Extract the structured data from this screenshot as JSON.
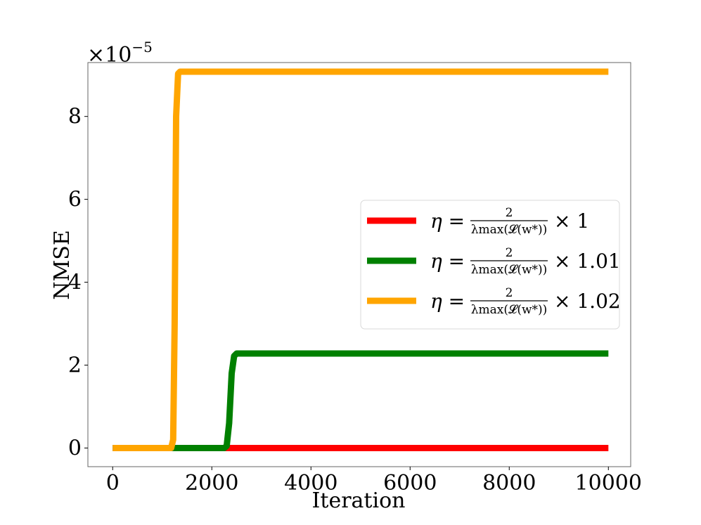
{
  "chart_data": {
    "type": "line",
    "xlabel": "Iteration",
    "ylabel": "NMSE",
    "y_scale_label": "×10",
    "y_scale_exponent": "−5",
    "xlim": [
      -500,
      10450
    ],
    "ylim": [
      -0.45,
      9.3
    ],
    "x_ticks": [
      0,
      2000,
      4000,
      6000,
      8000,
      10000
    ],
    "x_tick_labels": [
      "0",
      "2000",
      "4000",
      "6000",
      "8000",
      "10000"
    ],
    "y_ticks": [
      0,
      2,
      4,
      6,
      8
    ],
    "y_tick_labels": [
      "0",
      "2",
      "4",
      "6",
      "8"
    ],
    "grid": false,
    "legend_position": "center-right",
    "series": [
      {
        "name": "η = 2/λmax(L(w*)) × 1",
        "legend": {
          "eta": "η =",
          "num": "2",
          "den": "λmax(𝓛(w*))",
          "factor": "× 1"
        },
        "color": "#ff0000",
        "x": [
          0,
          10000
        ],
        "y": [
          0,
          0
        ]
      },
      {
        "name": "η = 2/λmax(L(w*)) × 1.01",
        "legend": {
          "eta": "η =",
          "num": "2",
          "den": "λmax(𝓛(w*))",
          "factor": "× 1.01"
        },
        "color": "#008000",
        "x": [
          0,
          2250,
          2300,
          2350,
          2400,
          2450,
          2500,
          10000
        ],
        "y": [
          0,
          0,
          0.05,
          0.6,
          1.8,
          2.22,
          2.28,
          2.28
        ]
      },
      {
        "name": "η = 2/λmax(L(w*)) × 1.02",
        "legend": {
          "eta": "η =",
          "num": "2",
          "den": "λmax(𝓛(w*))",
          "factor": "× 1.02"
        },
        "color": "#ffa500",
        "x": [
          0,
          1180,
          1220,
          1250,
          1280,
          1320,
          1360,
          10000
        ],
        "y": [
          0,
          0,
          0.2,
          3.0,
          8.0,
          9.03,
          9.08,
          9.08
        ]
      }
    ]
  }
}
